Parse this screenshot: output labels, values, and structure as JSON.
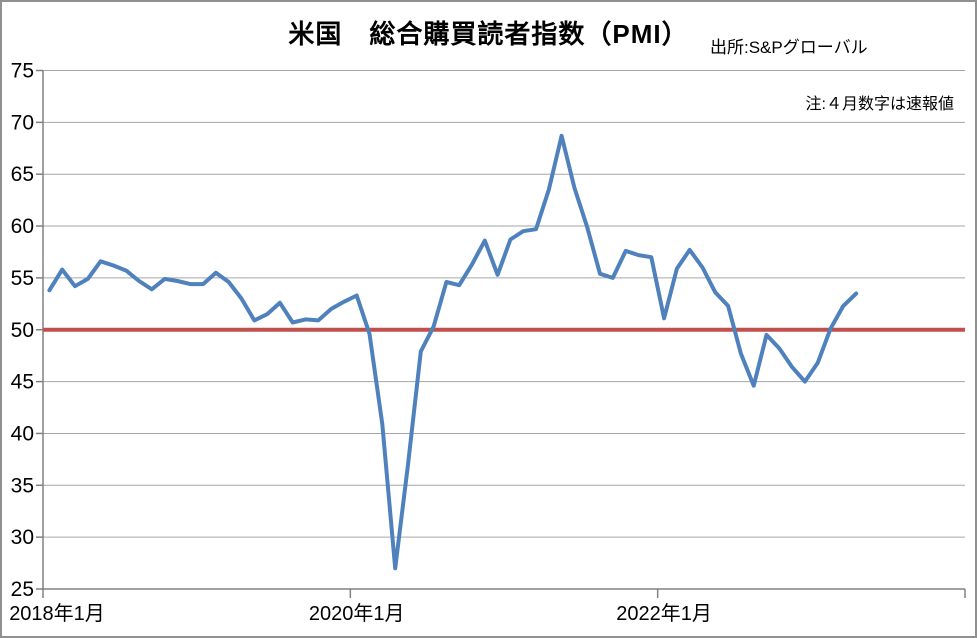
{
  "chart_data": {
    "type": "line",
    "title": "米国　総合購買読者指数（PMI）",
    "source": "出所:S&Pグローバル",
    "note": "注:４月数字は速報値",
    "ylim": [
      25,
      75
    ],
    "y_ticks": [
      25,
      30,
      35,
      40,
      45,
      50,
      55,
      60,
      65,
      70,
      75
    ],
    "x_start": "2018-01",
    "x_end_of_data": "2023-04",
    "x_total_months": 72,
    "x_tick_labels": [
      {
        "label": "2018年1月",
        "month_index": 0
      },
      {
        "label": "2020年1月",
        "month_index": 24
      },
      {
        "label": "2022年1月",
        "month_index": 48
      }
    ],
    "x_tick_boundary_interval": 24,
    "grid": true,
    "legend": "none",
    "reference_line": {
      "value": 50,
      "color": "#C0504D"
    },
    "series": [
      {
        "color": "#4F81BD",
        "values": [
          53.8,
          55.8,
          54.2,
          54.9,
          56.6,
          56.2,
          55.7,
          54.7,
          53.9,
          54.9,
          54.7,
          54.4,
          54.4,
          55.5,
          54.6,
          53.0,
          50.9,
          51.5,
          52.6,
          50.7,
          51.0,
          50.9,
          52.0,
          52.7,
          53.3,
          49.6,
          40.9,
          27.0,
          37.0,
          47.9,
          50.3,
          54.6,
          54.3,
          56.3,
          58.6,
          55.3,
          58.7,
          59.5,
          59.7,
          63.5,
          68.7,
          63.7,
          59.9,
          55.4,
          55.0,
          57.6,
          57.2,
          57.0,
          51.1,
          55.9,
          57.7,
          56.0,
          53.6,
          52.3,
          47.7,
          44.6,
          49.5,
          48.2,
          46.4,
          45.0,
          46.8,
          50.1,
          52.3,
          53.5
        ]
      }
    ],
    "style": {
      "line_color": "#4F81BD",
      "reference_color": "#C0504D",
      "gridline_color": "#A6A6A6",
      "axis_color": "#808080",
      "text_color": "#000000",
      "frame_border_color": "#909090",
      "background_color": "#FFFFFF"
    }
  }
}
